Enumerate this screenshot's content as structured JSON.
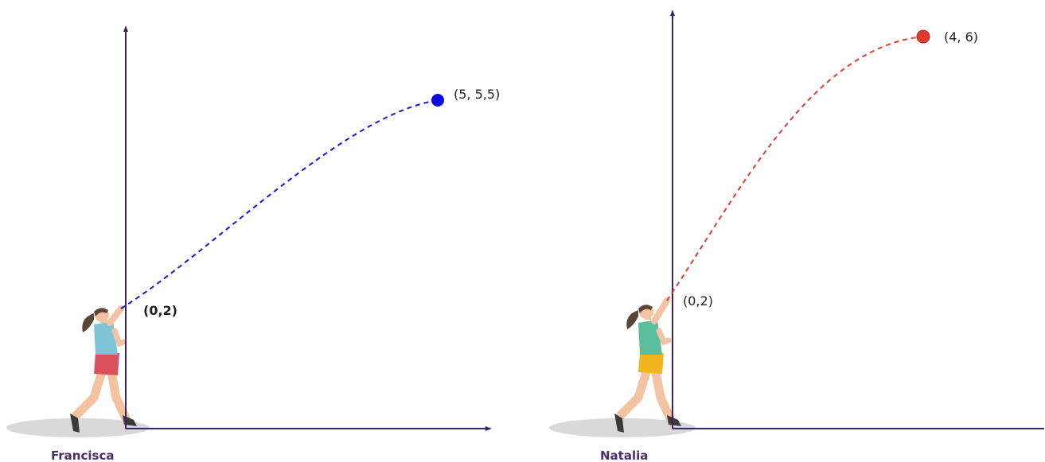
{
  "figures": [
    {
      "name": "Francisca",
      "start_label": "(0,2)",
      "end_label": "(5, 5,5)",
      "start": [
        0,
        2
      ],
      "end": [
        5,
        5.5
      ],
      "path_color": "#1414d6",
      "ball_color": "#0a0ae6",
      "shirt_color": "#7fc4d6",
      "shorts_color": "#d9505e"
    },
    {
      "name": "Natalia",
      "start_label": "(0,2)",
      "end_label": "(4, 6)",
      "start": [
        0,
        2
      ],
      "end": [
        4,
        6
      ],
      "path_color": "#e23a2e",
      "ball_color": "#e23a2e",
      "shirt_color": "#5bbf9f",
      "shorts_color": "#f2b51e"
    }
  ],
  "colors": {
    "axis": "#3d2366",
    "shadow": "#d9d9d9",
    "skin": "#f3c2a0",
    "hair": "#5a4636",
    "shoe": "#3a3a3a"
  }
}
